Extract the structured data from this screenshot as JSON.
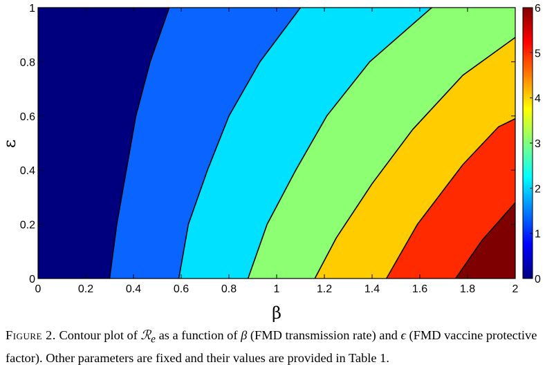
{
  "chart_data": {
    "type": "contour",
    "xlabel": "β",
    "ylabel": "ε",
    "xlim": [
      0,
      2
    ],
    "ylim": [
      0,
      1
    ],
    "x_ticks": [
      "0",
      "0.2",
      "0.4",
      "0.6",
      "0.8",
      "1",
      "1.2",
      "1.4",
      "1.6",
      "1.8",
      "2"
    ],
    "y_ticks": [
      "0",
      "0.2",
      "0.4",
      "0.6",
      "0.8",
      "1"
    ],
    "colorbar": {
      "range": [
        0,
        6
      ],
      "ticks": [
        "0",
        "1",
        "2",
        "3",
        "4",
        "5",
        "6"
      ],
      "colors": [
        "#00007f",
        "#0000ff",
        "#007fff",
        "#00ffff",
        "#7fff7f",
        "#ffff00",
        "#ff7f00",
        "#ff0000",
        "#7f0000"
      ]
    },
    "levels": [
      {
        "color": "#00007f",
        "boundary": [
          [
            0.3,
            0
          ],
          [
            0.33,
            0.2
          ],
          [
            0.37,
            0.4
          ],
          [
            0.41,
            0.6
          ],
          [
            0.47,
            0.8
          ],
          [
            0.55,
            1.0
          ]
        ]
      },
      {
        "color": "#0a64ff",
        "boundary": [
          [
            0.59,
            0
          ],
          [
            0.63,
            0.2
          ],
          [
            0.71,
            0.4
          ],
          [
            0.8,
            0.6
          ],
          [
            0.93,
            0.8
          ],
          [
            1.1,
            1.0
          ]
        ]
      },
      {
        "color": "#00e0ff",
        "boundary": [
          [
            0.88,
            0
          ],
          [
            0.96,
            0.2
          ],
          [
            1.08,
            0.4
          ],
          [
            1.21,
            0.6
          ],
          [
            1.39,
            0.8
          ],
          [
            1.65,
            1.0
          ]
        ]
      },
      {
        "color": "#8cff73",
        "boundary": [
          [
            1.16,
            0
          ],
          [
            1.25,
            0.15
          ],
          [
            1.4,
            0.35
          ],
          [
            1.57,
            0.55
          ],
          [
            1.78,
            0.75
          ],
          [
            2.0,
            0.89
          ]
        ]
      },
      {
        "color": "#ffcc00",
        "boundary": [
          [
            1.46,
            0
          ],
          [
            1.59,
            0.2
          ],
          [
            1.78,
            0.42
          ],
          [
            1.93,
            0.56
          ],
          [
            2.0,
            0.59
          ]
        ]
      },
      {
        "color": "#ff2a00",
        "boundary": [
          [
            1.75,
            0
          ],
          [
            1.86,
            0.14
          ],
          [
            1.97,
            0.25
          ],
          [
            2.0,
            0.28
          ]
        ]
      },
      {
        "color": "#7f0000",
        "boundary": []
      }
    ]
  },
  "caption": {
    "label": "Figure 2.",
    "text_before": "Contour plot of",
    "symbol": "ℛ",
    "subscript": "e",
    "text_middle": "as a function of",
    "beta": "β",
    "text_after_beta": "(FMD transmission rate) and",
    "epsilon": "ϵ",
    "text_end": "(FMD vaccine protective factor). Other parameters are fixed and their values are provided in Table 1."
  }
}
